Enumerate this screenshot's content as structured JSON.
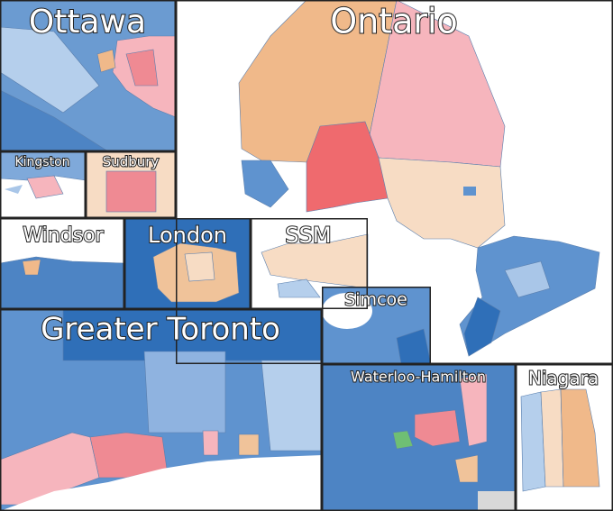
{
  "panels": [
    {
      "label": "Ottawa"
    },
    {
      "label": "Ontario"
    },
    {
      "label": "Kingston"
    },
    {
      "label": "Sudbury"
    },
    {
      "label": "Windsor"
    },
    {
      "label": "London"
    },
    {
      "label": "SSM"
    },
    {
      "label": "Simcoe"
    },
    {
      "label": "Greater Toronto"
    },
    {
      "label": "Waterloo-Hamilton"
    },
    {
      "label": "Niagara"
    }
  ]
}
